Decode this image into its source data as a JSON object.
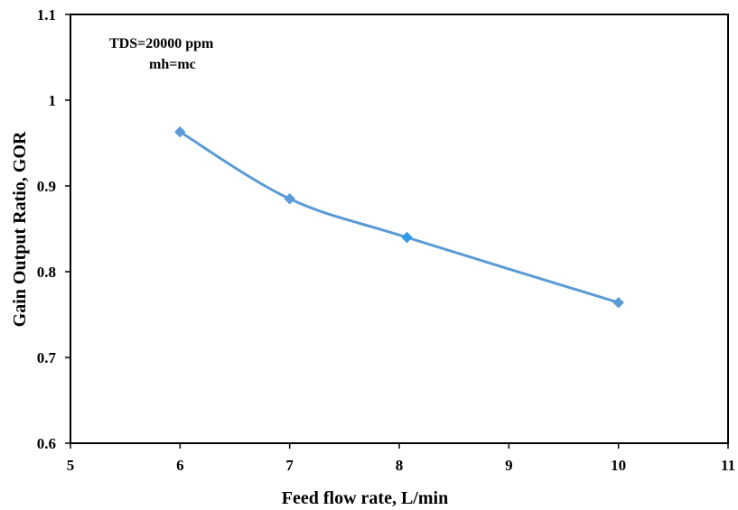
{
  "chart_data": {
    "type": "line",
    "xlabel": "Feed flow rate, L/min",
    "ylabel": "Gain Output Ratio, GOR",
    "xlim": [
      5,
      11
    ],
    "ylim": [
      0.6,
      1.1
    ],
    "x_ticks": [
      "5",
      "6",
      "7",
      "8",
      "9",
      "10",
      "11"
    ],
    "y_ticks": [
      "0.6",
      "0.7",
      "0.8",
      "0.9",
      "1",
      "1.1"
    ],
    "grid": false,
    "annotations": [
      "TDS=20000 ppm",
      "mh=mc"
    ],
    "series": [
      {
        "marker": "diamond",
        "color": "#5b9bd5",
        "points": [
          {
            "x": 6,
            "y": 0.963
          },
          {
            "x": 7,
            "y": 0.885
          },
          {
            "x": 8.07,
            "y": 0.84
          },
          {
            "x": 10,
            "y": 0.764
          }
        ]
      }
    ]
  }
}
